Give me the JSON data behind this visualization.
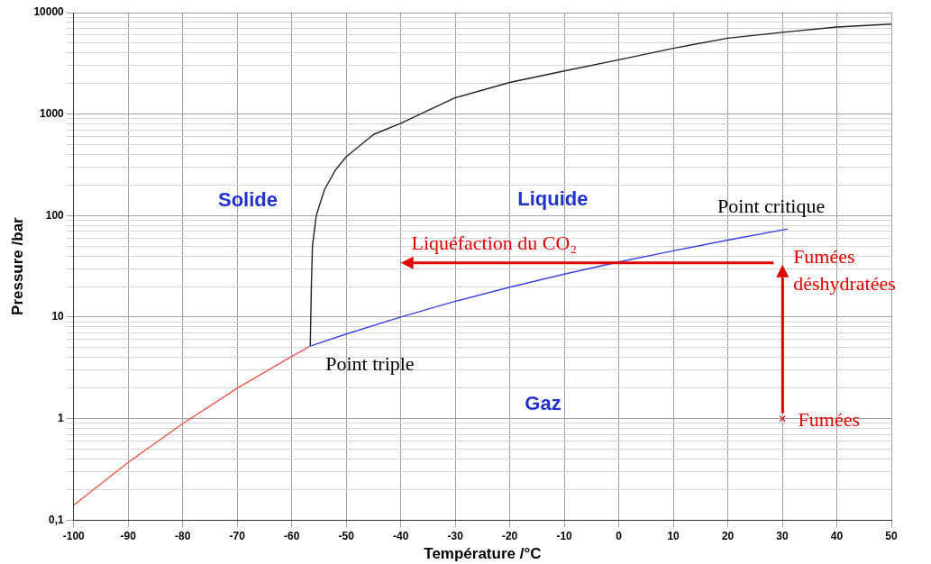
{
  "chart_data": {
    "type": "line",
    "xlabel": "Température /°C",
    "ylabel": "Pressure /bar",
    "series": [
      {
        "color": "#e8584f",
        "x": [
          -100,
          -90,
          -80,
          -70,
          -60,
          -56.6
        ],
        "values": [
          0.14,
          0.37,
          0.89,
          1.99,
          4.1,
          5.18
        ]
      },
      {
        "color": "#3a44dd",
        "x": [
          -56.6,
          -50,
          -40,
          -30,
          -20,
          -10,
          0,
          10,
          20,
          31
        ],
        "values": [
          5.18,
          6.8,
          10,
          14.3,
          19.7,
          26.5,
          34.9,
          45,
          57.3,
          73.8
        ]
      },
      {
        "color": "#222222",
        "x": [
          -56.6,
          -56.4,
          -56.2,
          -55.5,
          -54,
          -52,
          -50,
          -45,
          -40,
          -30,
          -20,
          -10,
          0,
          10,
          20,
          30,
          40,
          50
        ],
        "values": [
          5.18,
          20,
          50,
          100,
          180,
          280,
          380,
          630,
          810,
          1450,
          2050,
          2660,
          3430,
          4450,
          5600,
          6400,
          7200,
          7700
        ]
      }
    ],
    "xlim": [
      -100,
      50
    ],
    "xticks": [
      -100,
      -90,
      -80,
      -70,
      -60,
      -50,
      -40,
      -30,
      -20,
      -10,
      0,
      10,
      20,
      30,
      40,
      50
    ],
    "ylim": [
      0.1,
      10000
    ],
    "yticks": [
      {
        "value": 0.1,
        "label": "0,1"
      },
      {
        "value": 0.2,
        "label": null
      },
      {
        "value": 0.3,
        "label": null
      },
      {
        "value": 0.4,
        "label": null
      },
      {
        "value": 0.5,
        "label": null
      },
      {
        "value": 0.6,
        "label": null
      },
      {
        "value": 0.7,
        "label": null
      },
      {
        "value": 0.8,
        "label": null
      },
      {
        "value": 0.9,
        "label": null
      },
      1,
      {
        "value": 2,
        "label": null
      },
      {
        "value": 3,
        "label": null
      },
      {
        "value": 4,
        "label": null
      },
      {
        "value": 5,
        "label": null
      },
      {
        "value": 6,
        "label": null
      },
      {
        "value": 7,
        "label": null
      },
      {
        "value": 8,
        "label": null
      },
      {
        "value": 9,
        "label": null
      },
      10,
      {
        "value": 20,
        "label": null
      },
      {
        "value": 30,
        "label": null
      },
      {
        "value": 40,
        "label": null
      },
      {
        "value": 50,
        "label": null
      },
      {
        "value": 60,
        "label": null
      },
      {
        "value": 70,
        "label": null
      },
      {
        "value": 80,
        "label": null
      },
      {
        "value": 90,
        "label": null
      },
      100,
      {
        "value": 200,
        "label": null
      },
      {
        "value": 300,
        "label": null
      },
      {
        "value": 400,
        "label": null
      },
      {
        "value": 500,
        "label": null
      },
      {
        "value": 600,
        "label": null
      },
      {
        "value": 700,
        "label": null
      },
      {
        "value": 800,
        "label": null
      },
      {
        "value": 900,
        "label": null
      },
      1000,
      {
        "value": 2000,
        "label": null
      },
      {
        "value": 3000,
        "label": null
      },
      {
        "value": 4000,
        "label": null
      },
      {
        "value": 5000,
        "label": null
      },
      {
        "value": 6000,
        "label": null
      },
      {
        "value": 7000,
        "label": null
      },
      {
        "value": 8000,
        "label": null
      },
      {
        "value": 9000,
        "label": null
      },
      10000
    ],
    "log": true,
    "grid": true,
    "legend": false,
    "annotations": [
      "Solide",
      "Liquide",
      "Gaz",
      {
        "text": "Point triple",
        "x": -56.6,
        "y": 5.18
      },
      {
        "text": "Point critique",
        "x": 31,
        "y": 73.8
      },
      "Liquéfaction du CO₂",
      "Fumées déshydratées",
      "Fumées"
    ]
  }
}
